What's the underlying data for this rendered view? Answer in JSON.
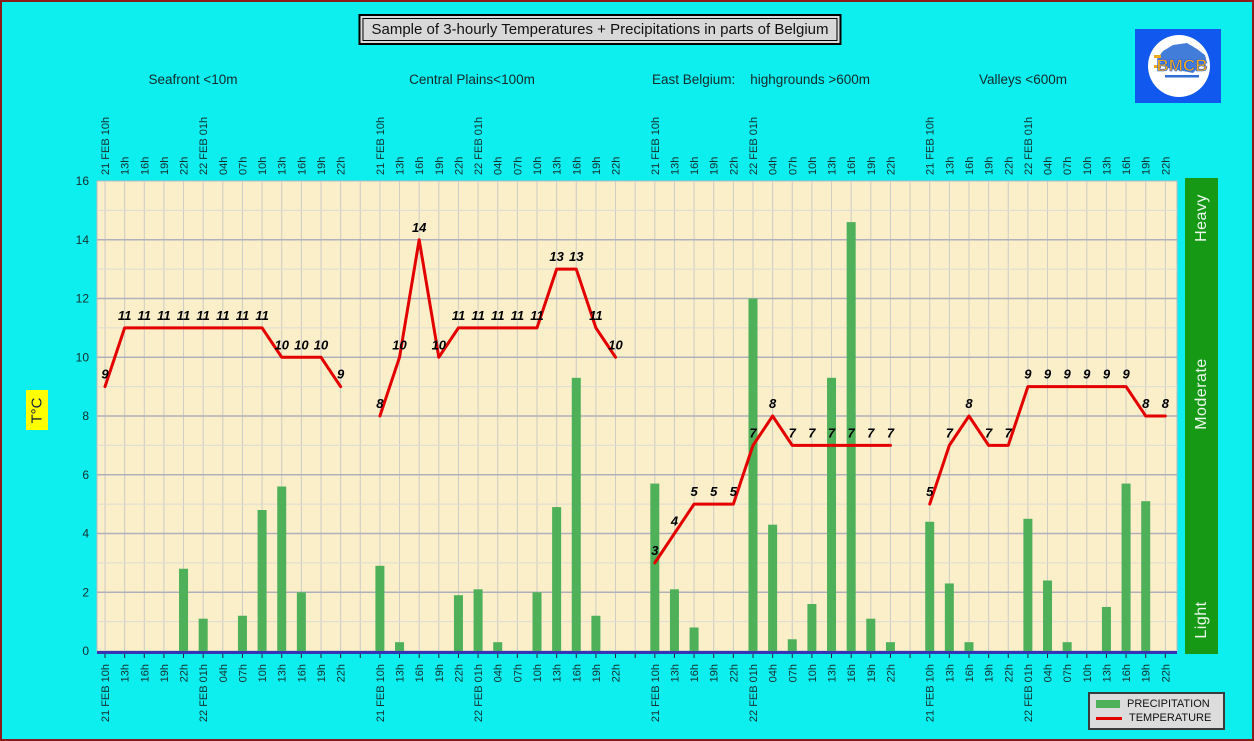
{
  "title": "Sample of 3-hourly Temperatures + Precipitations in parts of Belgium",
  "logo": {
    "text": "BMCB"
  },
  "left_axis": {
    "unit_label": "T°C",
    "tick_values": [
      0,
      2,
      4,
      6,
      8,
      10,
      12,
      14,
      16
    ]
  },
  "right_axis": {
    "labels": [
      "Heavy",
      "Moderate",
      "Light"
    ]
  },
  "legend": {
    "precipitation_label": "PRECIPITATION",
    "temperature_label": "TEMPERATURE"
  },
  "chart_data": {
    "type": "bar+line",
    "title": "Sample of 3-hourly Temperatures + Precipitations in parts of Belgium",
    "ylabel": "T°C",
    "ylim": [
      0,
      16
    ],
    "y_tick_step": 2,
    "grid": true,
    "legend_position": "bottom-right",
    "x_note": "13 three-hourly timestamps repeated for each of 4 regions, top and bottom axes",
    "time_labels": [
      "21 FEB 10h",
      "13h",
      "16h",
      "19h",
      "22h",
      "22 FEB 01h",
      "04h",
      "07h",
      "10h",
      "13h",
      "16h",
      "19h",
      "22h"
    ],
    "precipitation_intensity_scale": [
      "Heavy",
      "Moderate",
      "Light"
    ],
    "series_units": {
      "temperature_c": "°C",
      "precipitation": "relative (bar height, axis 0-16)"
    },
    "regions": [
      {
        "name": "Seafront <10m",
        "temperature_c": [
          9,
          11,
          11,
          11,
          11,
          11,
          11,
          11,
          11,
          10,
          10,
          10,
          9
        ],
        "precipitation": [
          0,
          0,
          0,
          0,
          2.8,
          1.1,
          0,
          1.2,
          4.8,
          5.6,
          2.0,
          0,
          0
        ]
      },
      {
        "name": "Central Plains<100m",
        "temperature_c": [
          8,
          10,
          14,
          10,
          11,
          11,
          11,
          11,
          11,
          13,
          13,
          11,
          10
        ],
        "precipitation": [
          2.9,
          0.3,
          0,
          0,
          1.9,
          2.1,
          0.3,
          0,
          2.0,
          4.9,
          9.3,
          1.2,
          0
        ]
      },
      {
        "name": "East Belgium:    highgrounds >600m",
        "temperature_c": [
          3,
          4,
          5,
          5,
          5,
          7,
          8,
          7,
          7,
          7,
          7,
          7,
          7
        ],
        "precipitation": [
          5.7,
          2.1,
          0.8,
          0,
          0,
          12.0,
          4.3,
          0.4,
          1.6,
          9.3,
          14.6,
          1.1,
          0.3
        ]
      },
      {
        "name": "Valleys <600m",
        "temperature_c": [
          5,
          7,
          8,
          7,
          7,
          9,
          9,
          9,
          9,
          9,
          9,
          8,
          8
        ],
        "precipitation": [
          4.4,
          2.3,
          0.3,
          0,
          0,
          4.5,
          2.4,
          0.3,
          0,
          1.5,
          5.7,
          5.1,
          0
        ]
      }
    ]
  },
  "colors": {
    "background": "#0deeee",
    "frame_border": "#8b1c1c",
    "plot_bg": "#faefc9",
    "bar": "#4fb05a",
    "line": "#e20000",
    "intensity_bar": "#169a16",
    "axis_line": "#3434b4",
    "unit_label_bg": "#ffff00",
    "logo_blue": "#1159ee",
    "logo_text": "#f0a81c"
  }
}
